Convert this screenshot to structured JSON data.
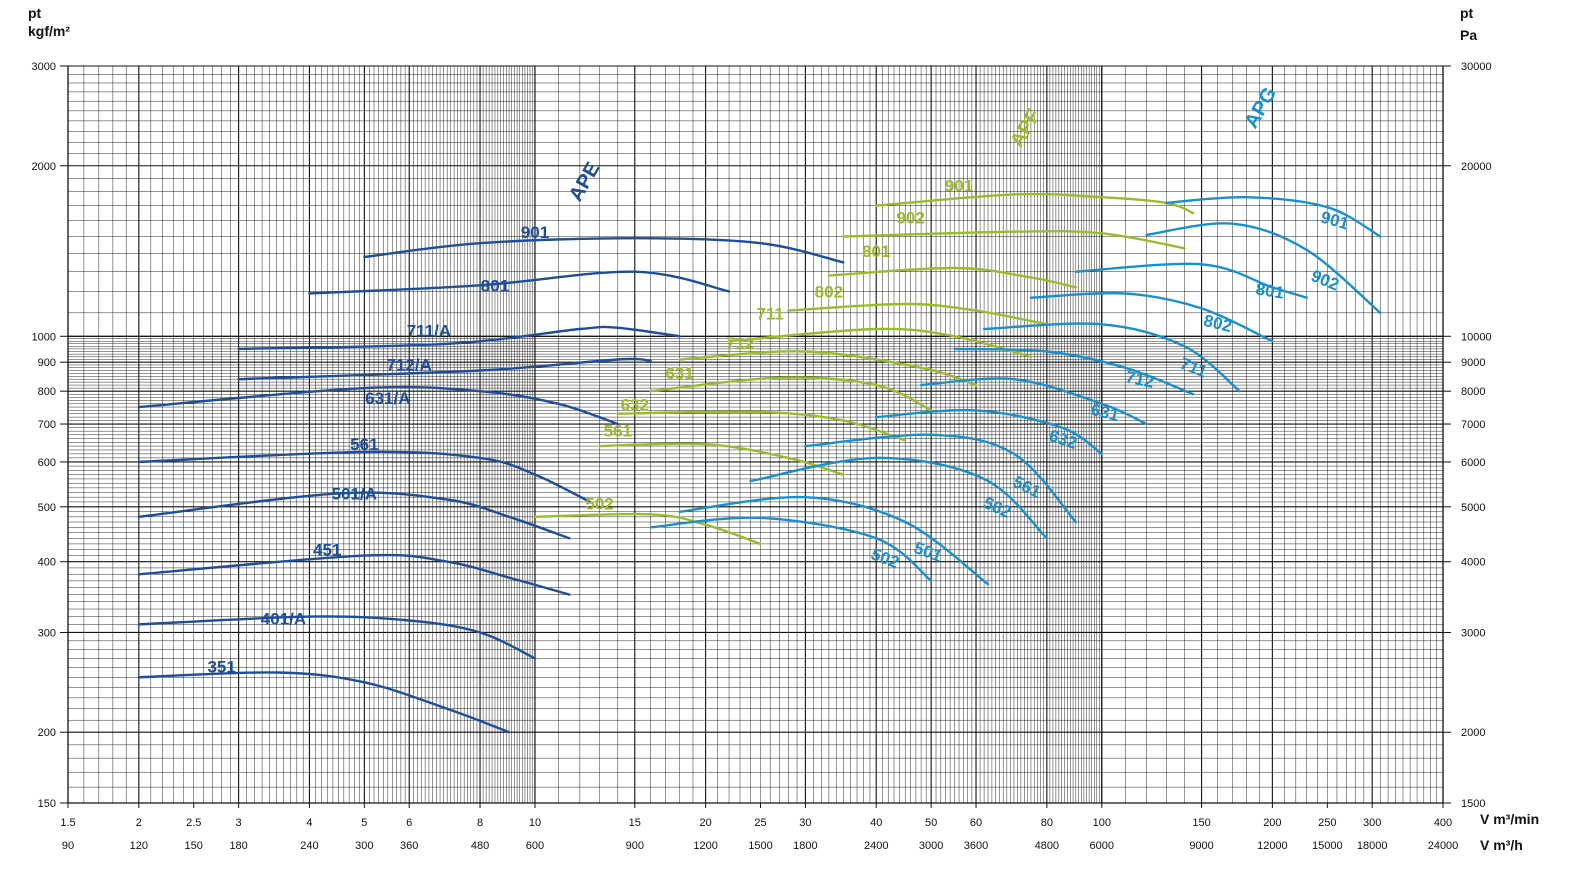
{
  "chart_data": {
    "type": "line",
    "scale": "log-log",
    "grid": true,
    "axes": {
      "left": {
        "title_line1": "pt",
        "title_line2": "kgf/m²",
        "range": [
          150,
          3000
        ],
        "ticks": [
          150,
          200,
          300,
          400,
          500,
          600,
          700,
          800,
          900,
          1000,
          2000,
          3000
        ]
      },
      "right": {
        "title_line1": "pt",
        "title_line2": "Pa",
        "range": [
          1500,
          30000
        ],
        "ticks": [
          1500,
          2000,
          3000,
          4000,
          5000,
          6000,
          7000,
          8000,
          9000,
          10000,
          20000,
          30000
        ]
      },
      "bottom_primary": {
        "title": "V m³/min",
        "range": [
          1.5,
          400
        ],
        "ticks": [
          1.5,
          2,
          2.5,
          3,
          4,
          5,
          6,
          8,
          10,
          15,
          20,
          25,
          30,
          40,
          50,
          60,
          80,
          100,
          150,
          200,
          250,
          300,
          400
        ]
      },
      "bottom_secondary": {
        "title": "V m³/h",
        "ticks": [
          90,
          120,
          150,
          180,
          240,
          300,
          360,
          480,
          600,
          900,
          1200,
          1500,
          1800,
          2400,
          3000,
          3600,
          4800,
          6000,
          9000,
          12000,
          15000,
          18000,
          24000
        ]
      }
    },
    "families": [
      {
        "name": "APE",
        "color": "#1f4e99"
      },
      {
        "name": "APF",
        "color": "#9bbb2e"
      },
      {
        "name": "APG",
        "color": "#1b8fcc"
      }
    ],
    "series": [
      {
        "family": "APE",
        "name": "901",
        "points": [
          [
            5,
            1380
          ],
          [
            8,
            1460
          ],
          [
            15,
            1490
          ],
          [
            25,
            1460
          ],
          [
            35,
            1350
          ]
        ]
      },
      {
        "family": "APE",
        "name": "801",
        "points": [
          [
            4,
            1190
          ],
          [
            8,
            1230
          ],
          [
            15,
            1300
          ],
          [
            22,
            1200
          ]
        ]
      },
      {
        "family": "APE",
        "name": "711/A",
        "points": [
          [
            3,
            950
          ],
          [
            7,
            970
          ],
          [
            12,
            1030
          ],
          [
            14,
            1035
          ],
          [
            18,
            1000
          ]
        ]
      },
      {
        "family": "APE",
        "name": "712/A",
        "points": [
          [
            3,
            840
          ],
          [
            8,
            870
          ],
          [
            14,
            910
          ],
          [
            16,
            905
          ]
        ]
      },
      {
        "family": "APE",
        "name": "631/A",
        "points": [
          [
            2,
            750
          ],
          [
            5,
            810
          ],
          [
            8,
            800
          ],
          [
            11,
            760
          ],
          [
            14,
            700
          ]
        ]
      },
      {
        "family": "APE",
        "name": "561",
        "points": [
          [
            2,
            600
          ],
          [
            5,
            625
          ],
          [
            8,
            610
          ],
          [
            10,
            570
          ],
          [
            12.5,
            510
          ]
        ]
      },
      {
        "family": "APE",
        "name": "501/A",
        "points": [
          [
            2,
            480
          ],
          [
            4.5,
            528
          ],
          [
            7,
            515
          ],
          [
            9,
            480
          ],
          [
            11.5,
            440
          ]
        ]
      },
      {
        "family": "APE",
        "name": "451",
        "points": [
          [
            2,
            380
          ],
          [
            5,
            410
          ],
          [
            7,
            400
          ],
          [
            9,
            375
          ],
          [
            11.5,
            350
          ]
        ]
      },
      {
        "family": "APE",
        "name": "401/A",
        "points": [
          [
            2,
            310
          ],
          [
            4,
            320
          ],
          [
            6,
            315
          ],
          [
            8,
            300
          ],
          [
            10,
            270
          ]
        ]
      },
      {
        "family": "APE",
        "name": "351",
        "points": [
          [
            2,
            250
          ],
          [
            3.5,
            255
          ],
          [
            5,
            245
          ],
          [
            7,
            220
          ],
          [
            9,
            200
          ]
        ]
      },
      {
        "family": "APF",
        "name": "901",
        "points": [
          [
            40,
            1700
          ],
          [
            70,
            1780
          ],
          [
            100,
            1760
          ],
          [
            130,
            1720
          ],
          [
            145,
            1650
          ]
        ]
      },
      {
        "family": "APF",
        "name": "902",
        "points": [
          [
            35,
            1500
          ],
          [
            70,
            1530
          ],
          [
            100,
            1520
          ],
          [
            140,
            1430
          ]
        ]
      },
      {
        "family": "APF",
        "name": "801",
        "points": [
          [
            33,
            1280
          ],
          [
            55,
            1320
          ],
          [
            75,
            1270
          ],
          [
            90,
            1220
          ]
        ]
      },
      {
        "family": "APF",
        "name": "802",
        "points": [
          [
            28,
            1110
          ],
          [
            45,
            1140
          ],
          [
            60,
            1110
          ],
          [
            80,
            1050
          ]
        ]
      },
      {
        "family": "APF",
        "name": "711",
        "points": [
          [
            22,
            980
          ],
          [
            40,
            1030
          ],
          [
            55,
            1000
          ],
          [
            75,
            920
          ]
        ]
      },
      {
        "family": "APF",
        "name": "712",
        "points": [
          [
            18,
            910
          ],
          [
            30,
            940
          ],
          [
            48,
            880
          ],
          [
            60,
            820
          ]
        ]
      },
      {
        "family": "APF",
        "name": "631",
        "points": [
          [
            16,
            800
          ],
          [
            27,
            845
          ],
          [
            40,
            820
          ],
          [
            50,
            740
          ]
        ]
      },
      {
        "family": "APF",
        "name": "632",
        "points": [
          [
            14,
            730
          ],
          [
            25,
            735
          ],
          [
            35,
            710
          ],
          [
            45,
            655
          ]
        ]
      },
      {
        "family": "APF",
        "name": "561",
        "points": [
          [
            13,
            640
          ],
          [
            20,
            645
          ],
          [
            28,
            610
          ],
          [
            35,
            570
          ]
        ]
      },
      {
        "family": "APF",
        "name": "502",
        "points": [
          [
            10,
            480
          ],
          [
            16,
            485
          ],
          [
            20,
            465
          ],
          [
            25,
            430
          ]
        ]
      },
      {
        "family": "APG",
        "name": "901",
        "points": [
          [
            130,
            1720
          ],
          [
            180,
            1760
          ],
          [
            250,
            1690
          ],
          [
            310,
            1500
          ]
        ]
      },
      {
        "family": "APG",
        "name": "902",
        "points": [
          [
            120,
            1510
          ],
          [
            170,
            1580
          ],
          [
            230,
            1420
          ],
          [
            310,
            1100
          ]
        ]
      },
      {
        "family": "APG",
        "name": "801",
        "points": [
          [
            90,
            1300
          ],
          [
            150,
            1340
          ],
          [
            200,
            1220
          ],
          [
            230,
            1170
          ]
        ]
      },
      {
        "family": "APG",
        "name": "802",
        "points": [
          [
            75,
            1170
          ],
          [
            110,
            1190
          ],
          [
            150,
            1120
          ],
          [
            200,
            980
          ]
        ]
      },
      {
        "family": "APG",
        "name": "711",
        "points": [
          [
            62,
            1030
          ],
          [
            100,
            1050
          ],
          [
            140,
            960
          ],
          [
            175,
            800
          ]
        ]
      },
      {
        "family": "APG",
        "name": "712",
        "points": [
          [
            55,
            950
          ],
          [
            80,
            940
          ],
          [
            110,
            880
          ],
          [
            145,
            790
          ]
        ]
      },
      {
        "family": "APG",
        "name": "631",
        "points": [
          [
            48,
            820
          ],
          [
            70,
            840
          ],
          [
            100,
            760
          ],
          [
            120,
            700
          ]
        ]
      },
      {
        "family": "APG",
        "name": "632",
        "points": [
          [
            40,
            720
          ],
          [
            60,
            740
          ],
          [
            85,
            690
          ],
          [
            100,
            620
          ]
        ]
      },
      {
        "family": "APG",
        "name": "561",
        "points": [
          [
            30,
            640
          ],
          [
            50,
            670
          ],
          [
            70,
            620
          ],
          [
            90,
            470
          ]
        ]
      },
      {
        "family": "APG",
        "name": "562",
        "points": [
          [
            24,
            555
          ],
          [
            40,
            610
          ],
          [
            62,
            560
          ],
          [
            80,
            440
          ]
        ]
      },
      {
        "family": "APG",
        "name": "501",
        "points": [
          [
            18,
            490
          ],
          [
            30,
            520
          ],
          [
            45,
            470
          ],
          [
            63,
            365
          ]
        ]
      },
      {
        "family": "APG",
        "name": "502",
        "points": [
          [
            16,
            460
          ],
          [
            25,
            478
          ],
          [
            40,
            440
          ],
          [
            50,
            370
          ]
        ]
      }
    ],
    "label_positions": {
      "APE": {
        "901": [
          10,
          1490
        ],
        "801": [
          8.5,
          1200
        ],
        "711/A": [
          6.5,
          1000
        ],
        "712/A": [
          6,
          870
        ],
        "631/A": [
          5.5,
          760
        ],
        "561": [
          5,
          630
        ],
        "501/A": [
          4.8,
          515
        ],
        "451": [
          4.3,
          410
        ],
        "401/A": [
          3.6,
          310
        ],
        "351": [
          2.8,
          255
        ]
      },
      "APF": {
        "901": [
          56,
          1800
        ],
        "902": [
          46,
          1580
        ],
        "801": [
          40,
          1380
        ],
        "802": [
          33,
          1170
        ],
        "711": [
          26,
          1070
        ],
        "712": [
          23,
          950
        ],
        "631": [
          18,
          840
        ],
        "632": [
          15,
          740
        ],
        "561": [
          14,
          665
        ],
        "502": [
          13,
          495
        ]
      }
    }
  }
}
